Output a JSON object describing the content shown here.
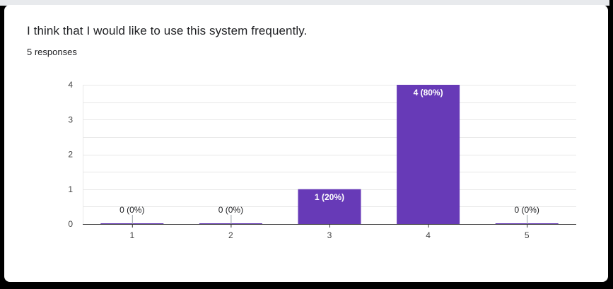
{
  "question": {
    "title": "I think that I would like to use this system frequently.",
    "responses_label": "5 responses"
  },
  "colors": {
    "bar": "#673ab7",
    "grid": "#e8e8e8",
    "axis": "#333333",
    "text": "#202124",
    "tick_text": "#444444",
    "label_on_bar": "#ffffff"
  },
  "chart_data": {
    "type": "bar",
    "title": "",
    "xlabel": "",
    "ylabel": "",
    "categories": [
      "1",
      "2",
      "3",
      "4",
      "5"
    ],
    "values": [
      0,
      0,
      1,
      4,
      0
    ],
    "data_labels": [
      "0 (0%)",
      "0 (0%)",
      "1 (20%)",
      "4 (80%)",
      "0 (0%)"
    ],
    "ylim": [
      0,
      4
    ],
    "yticks": [
      "0",
      "1",
      "2",
      "3",
      "4"
    ],
    "grid": true,
    "legend": "none"
  }
}
